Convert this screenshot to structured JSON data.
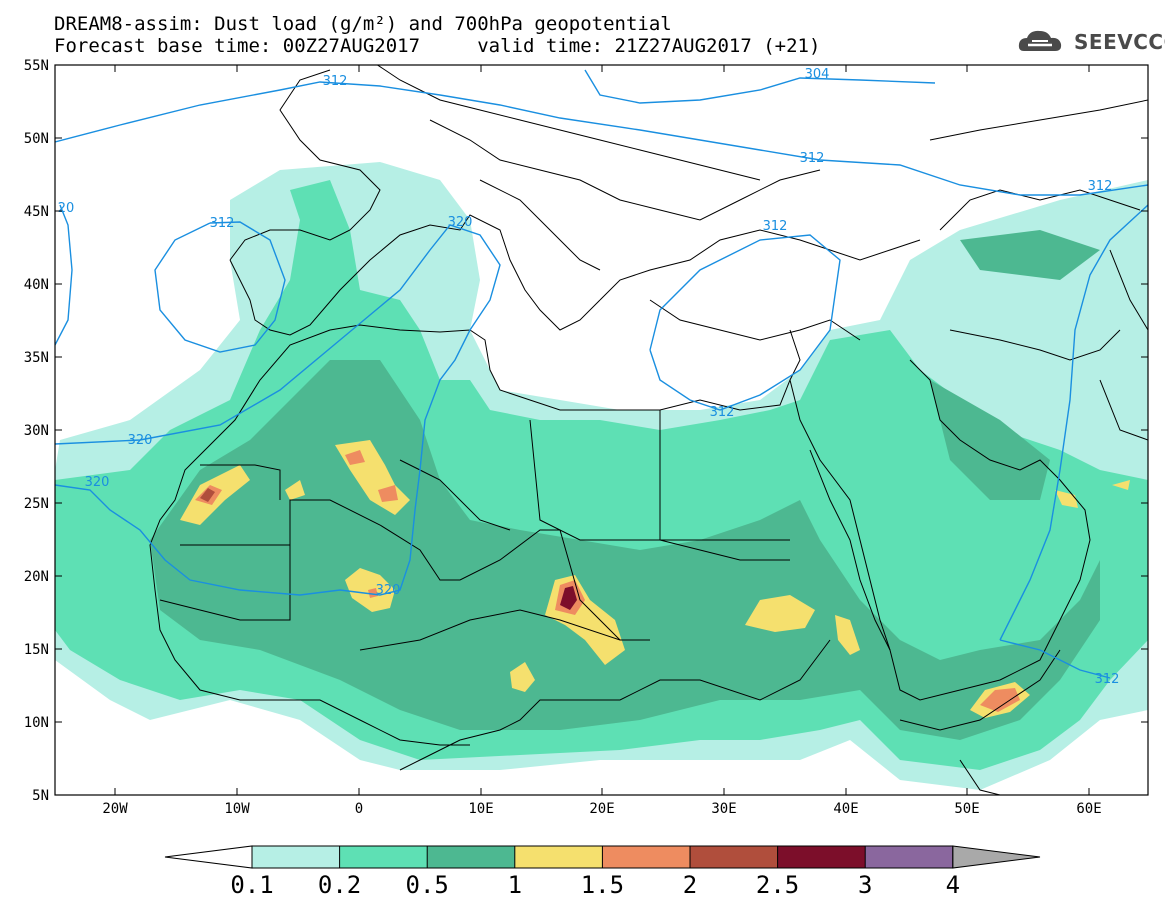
{
  "title": {
    "line1": "DREAM8-assim: Dust load (g/m²) and 700hPa geopotential",
    "line2": "Forecast base time: 00Z27AUG2017     valid time: 21Z27AUG2017 (+21)"
  },
  "logo": {
    "text": "SEEVCCC",
    "icon": "cloud-icon"
  },
  "axes": {
    "lon_labels": [
      "20W",
      "10W",
      "0",
      "10E",
      "20E",
      "30E",
      "40E",
      "50E",
      "60E"
    ],
    "lat_labels": [
      "55N",
      "50N",
      "45N",
      "40N",
      "35N",
      "30N",
      "25N",
      "20N",
      "15N",
      "10N",
      "5N"
    ]
  },
  "colorbar": {
    "labels": [
      "0.1",
      "0.2",
      "0.5",
      "1",
      "1.5",
      "2",
      "2.5",
      "3",
      "4"
    ],
    "colors": {
      "below": "#ffffff",
      "bins": [
        "#b6efe5",
        "#5ee0b4",
        "#4db891",
        "#f5e06e",
        "#ee8c60",
        "#b04e3c",
        "#7c0e2a",
        "#8a679e"
      ],
      "above": "#a9a9a9"
    }
  },
  "geopotential_labels": [
    "312",
    "304",
    "312",
    "312",
    "320",
    "312",
    "312",
    "312",
    "320",
    "320",
    "320",
    "312",
    "312"
  ],
  "edge_label": "20"
}
